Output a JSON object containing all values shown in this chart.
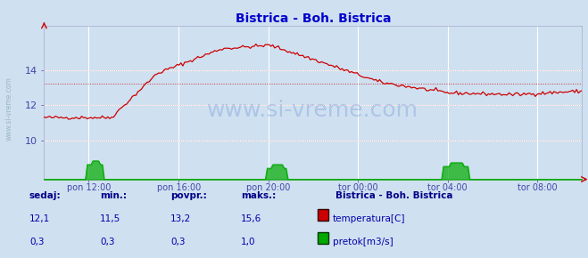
{
  "title": "Bistrica - Boh. Bistrica",
  "bg_color": "#cfe0f0",
  "title_color": "#0000cc",
  "tick_color": "#4444aa",
  "watermark_text": "www.si-vreme.com",
  "watermark_color": "#4477cc",
  "watermark_alpha": 0.25,
  "ylabel_left": "www.si-vreme.com",
  "ylim": [
    7.8,
    16.5
  ],
  "yticks": [
    10,
    12,
    14
  ],
  "xtick_labels": [
    "pon 12:00",
    "pon 16:00",
    "pon 20:00",
    "tor 00:00",
    "tor 04:00",
    "tor 08:00"
  ],
  "xtick_positions": [
    0.083,
    0.25,
    0.417,
    0.583,
    0.75,
    0.917
  ],
  "avg_temp": 13.2,
  "temp_color": "#cc0000",
  "flow_color": "#00aa00",
  "legend_title": "Bistrica - Boh. Bistrica",
  "legend_items": [
    "temperatura[C]",
    "pretok[m3/s]"
  ],
  "legend_colors": [
    "#cc0000",
    "#00aa00"
  ],
  "stats_labels": [
    "sedaj:",
    "min.:",
    "povpr.:",
    "maks.:"
  ],
  "stats_temp": [
    "12,1",
    "11,5",
    "13,2",
    "15,6"
  ],
  "stats_flow": [
    "0,3",
    "0,3",
    "0,3",
    "1,0"
  ],
  "stats_color": "#0000aa",
  "stats_label_color": "#000088",
  "n_points": 288
}
